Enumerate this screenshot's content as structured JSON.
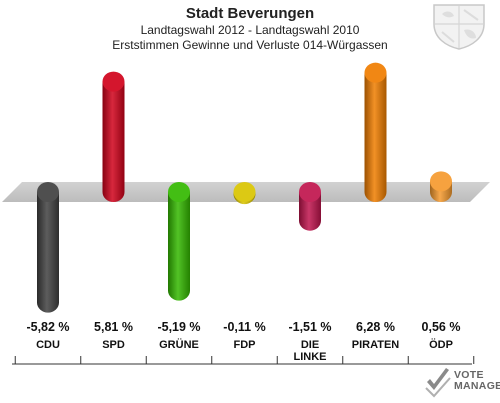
{
  "header": {
    "title": "Stadt Beverungen",
    "subtitle": "Landtagswahl 2012 - Landtagswahl 2010",
    "description": "Erststimmen Gewinne und Verluste 014-Würgassen"
  },
  "chart_data": {
    "type": "bar",
    "categories": [
      "CDU",
      "SPD",
      "GRÜNE",
      "FDP",
      "DIE LINKE",
      "PIRATEN",
      "ÖDP"
    ],
    "values": [
      -5.82,
      5.81,
      -5.19,
      -0.11,
      -1.51,
      6.28,
      0.56
    ],
    "value_labels": [
      "-5,82 %",
      "5,81 %",
      "-5,19 %",
      "-0,11 %",
      "-1,51 %",
      "6,28 %",
      "0,56 %"
    ],
    "colors": [
      "#404040",
      "#d0021b",
      "#33b800",
      "#d9c400",
      "#c0144d",
      "#f07d00",
      "#f59a2e"
    ],
    "ylim": [
      -7,
      7
    ]
  },
  "logo": {
    "line1": "VOTE",
    "line2": "MANAGER"
  }
}
